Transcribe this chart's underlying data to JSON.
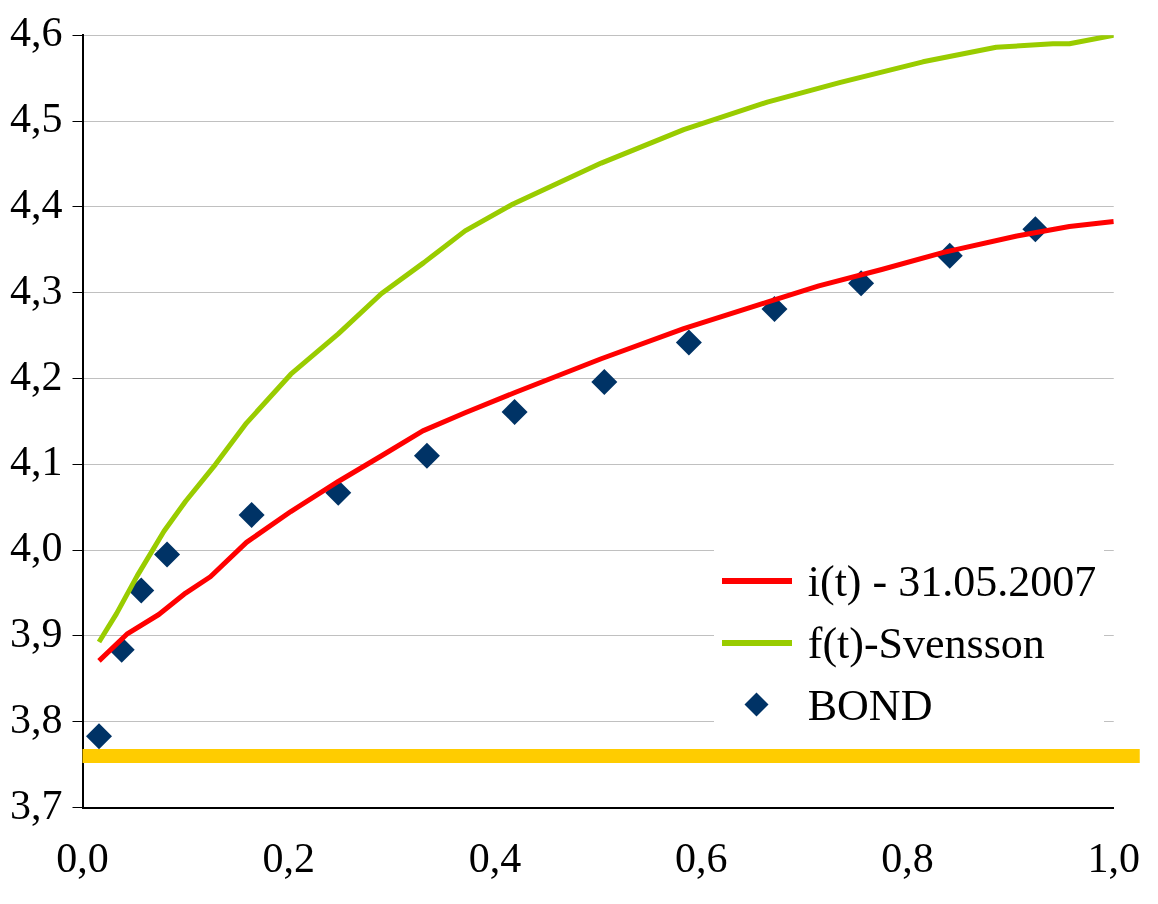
{
  "chart_data": {
    "type": "line",
    "xlim": [
      0,
      1
    ],
    "xticks": [
      {
        "value": 0,
        "label": "0,0"
      },
      {
        "value": 0.2,
        "label": "0,2"
      },
      {
        "value": 0.4,
        "label": "0,4"
      },
      {
        "value": 0.6,
        "label": "0,6"
      },
      {
        "value": 0.8,
        "label": "0,8"
      },
      {
        "value": 1,
        "label": "1,0"
      }
    ],
    "ylim": [
      3.7,
      4.6
    ],
    "yticks": [
      {
        "value": 3.7,
        "label": "3,7"
      },
      {
        "value": 3.8,
        "label": "3,8"
      },
      {
        "value": 3.9,
        "label": "3,9"
      },
      {
        "value": 4.0,
        "label": "4,0"
      },
      {
        "value": 4.1,
        "label": "4,1"
      },
      {
        "value": 4.2,
        "label": "4,2"
      },
      {
        "value": 4.3,
        "label": "4,3"
      },
      {
        "value": 4.4,
        "label": "4,4"
      },
      {
        "value": 4.5,
        "label": "4,5"
      },
      {
        "value": 4.6,
        "label": "4,6"
      }
    ],
    "grid": "y",
    "legend": "bottom right",
    "ref_lines": [
      {
        "axis": "y",
        "value": 3.76,
        "color": "#ffcc00"
      }
    ],
    "series": [
      {
        "name": "i(t) - 31.05.2007",
        "color": "#ff0000",
        "marker": "none",
        "x": [
          0.016,
          0.043,
          0.074,
          0.1,
          0.124,
          0.159,
          0.202,
          0.248,
          0.29,
          0.33,
          0.371,
          0.42,
          0.503,
          0.583,
          0.664,
          0.714,
          0.775,
          0.835,
          0.906,
          0.957,
          1.0
        ],
        "values": [
          3.871,
          3.902,
          3.925,
          3.95,
          3.969,
          4.009,
          4.045,
          4.08,
          4.11,
          4.139,
          4.16,
          4.184,
          4.223,
          4.258,
          4.289,
          4.308,
          4.327,
          4.347,
          4.366,
          4.377,
          4.383
        ]
      },
      {
        "name": "f(t)-Svensson",
        "color": "#99cc00",
        "marker": "none",
        "x": [
          0.016,
          0.033,
          0.053,
          0.079,
          0.1,
          0.129,
          0.159,
          0.202,
          0.248,
          0.29,
          0.331,
          0.371,
          0.417,
          0.503,
          0.583,
          0.664,
          0.735,
          0.815,
          0.886,
          0.941,
          0.957,
          1.0
        ],
        "values": [
          3.893,
          3.926,
          3.97,
          4.022,
          4.057,
          4.1,
          4.148,
          4.205,
          4.252,
          4.299,
          4.335,
          4.372,
          4.403,
          4.451,
          4.49,
          4.522,
          4.545,
          4.569,
          4.586,
          4.59,
          4.59,
          4.6
        ]
      },
      {
        "name": "BOND",
        "type": "scatter",
        "color": "#003366",
        "marker": "diamond",
        "x": [
          0.016,
          0.038,
          0.057,
          0.082,
          0.164,
          0.248,
          0.334,
          0.419,
          0.506,
          0.588,
          0.671,
          0.755,
          0.841,
          0.924
        ],
        "values": [
          3.783,
          3.884,
          3.953,
          3.995,
          4.041,
          4.067,
          4.11,
          4.161,
          4.196,
          4.242,
          4.281,
          4.311,
          4.343,
          4.374
        ]
      }
    ]
  }
}
